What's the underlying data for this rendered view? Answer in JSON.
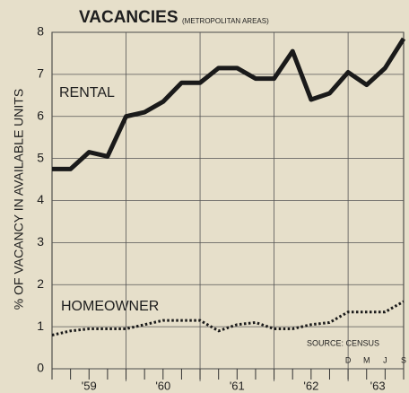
{
  "chart_data": {
    "type": "line",
    "title": "VACANCIES",
    "subtitle": "(METROPOLITAN AREAS)",
    "y_label": "% OF VACANCY IN AVAILABLE UNITS",
    "x": [
      1959,
      1959.25,
      1959.5,
      1959.75,
      1960,
      1960.25,
      1960.5,
      1960.75,
      1961,
      1961.25,
      1961.5,
      1961.75,
      1962,
      1962.25,
      1962.5,
      1962.75,
      1963,
      1963.25,
      1963.5,
      1963.75
    ],
    "series": [
      {
        "name": "RENTAL",
        "color": "#1a1a1a",
        "style": "solid",
        "values": [
          4.75,
          4.75,
          5.15,
          5.05,
          6.0,
          6.1,
          6.35,
          6.8,
          6.8,
          7.15,
          7.15,
          6.9,
          6.9,
          7.55,
          6.4,
          6.55,
          7.05,
          6.75,
          7.15,
          7.85
        ]
      },
      {
        "name": "HOMEOWNER",
        "color": "#1a1a1a",
        "style": "dotted",
        "values": [
          0.8,
          0.9,
          0.95,
          0.95,
          0.95,
          1.05,
          1.15,
          1.15,
          1.15,
          0.9,
          1.05,
          1.1,
          0.95,
          0.95,
          1.05,
          1.1,
          1.35,
          1.35,
          1.35,
          1.6
        ]
      }
    ],
    "xlim": [
      1959,
      1963.75
    ],
    "xticks": [
      1960,
      1961,
      1962,
      1963
    ],
    "ylim": [
      0,
      8
    ],
    "yticks": [
      0,
      1,
      2,
      3,
      4,
      5,
      6,
      7,
      8
    ],
    "grid": true,
    "year_labels": [
      {
        "value": 1959.5,
        "label": "'59"
      },
      {
        "value": 1960.5,
        "label": "'60"
      },
      {
        "value": 1961.5,
        "label": "'61"
      },
      {
        "value": 1962.5,
        "label": "'62"
      },
      {
        "value": 1963.4,
        "label": "'63"
      }
    ],
    "month_labels": [
      {
        "value": 1963,
        "label": "D"
      },
      {
        "value": 1963.25,
        "label": "M"
      },
      {
        "value": 1963.5,
        "label": "J"
      },
      {
        "value": 1963.75,
        "label": "S"
      }
    ],
    "source": "SOURCE: CENSUS"
  }
}
